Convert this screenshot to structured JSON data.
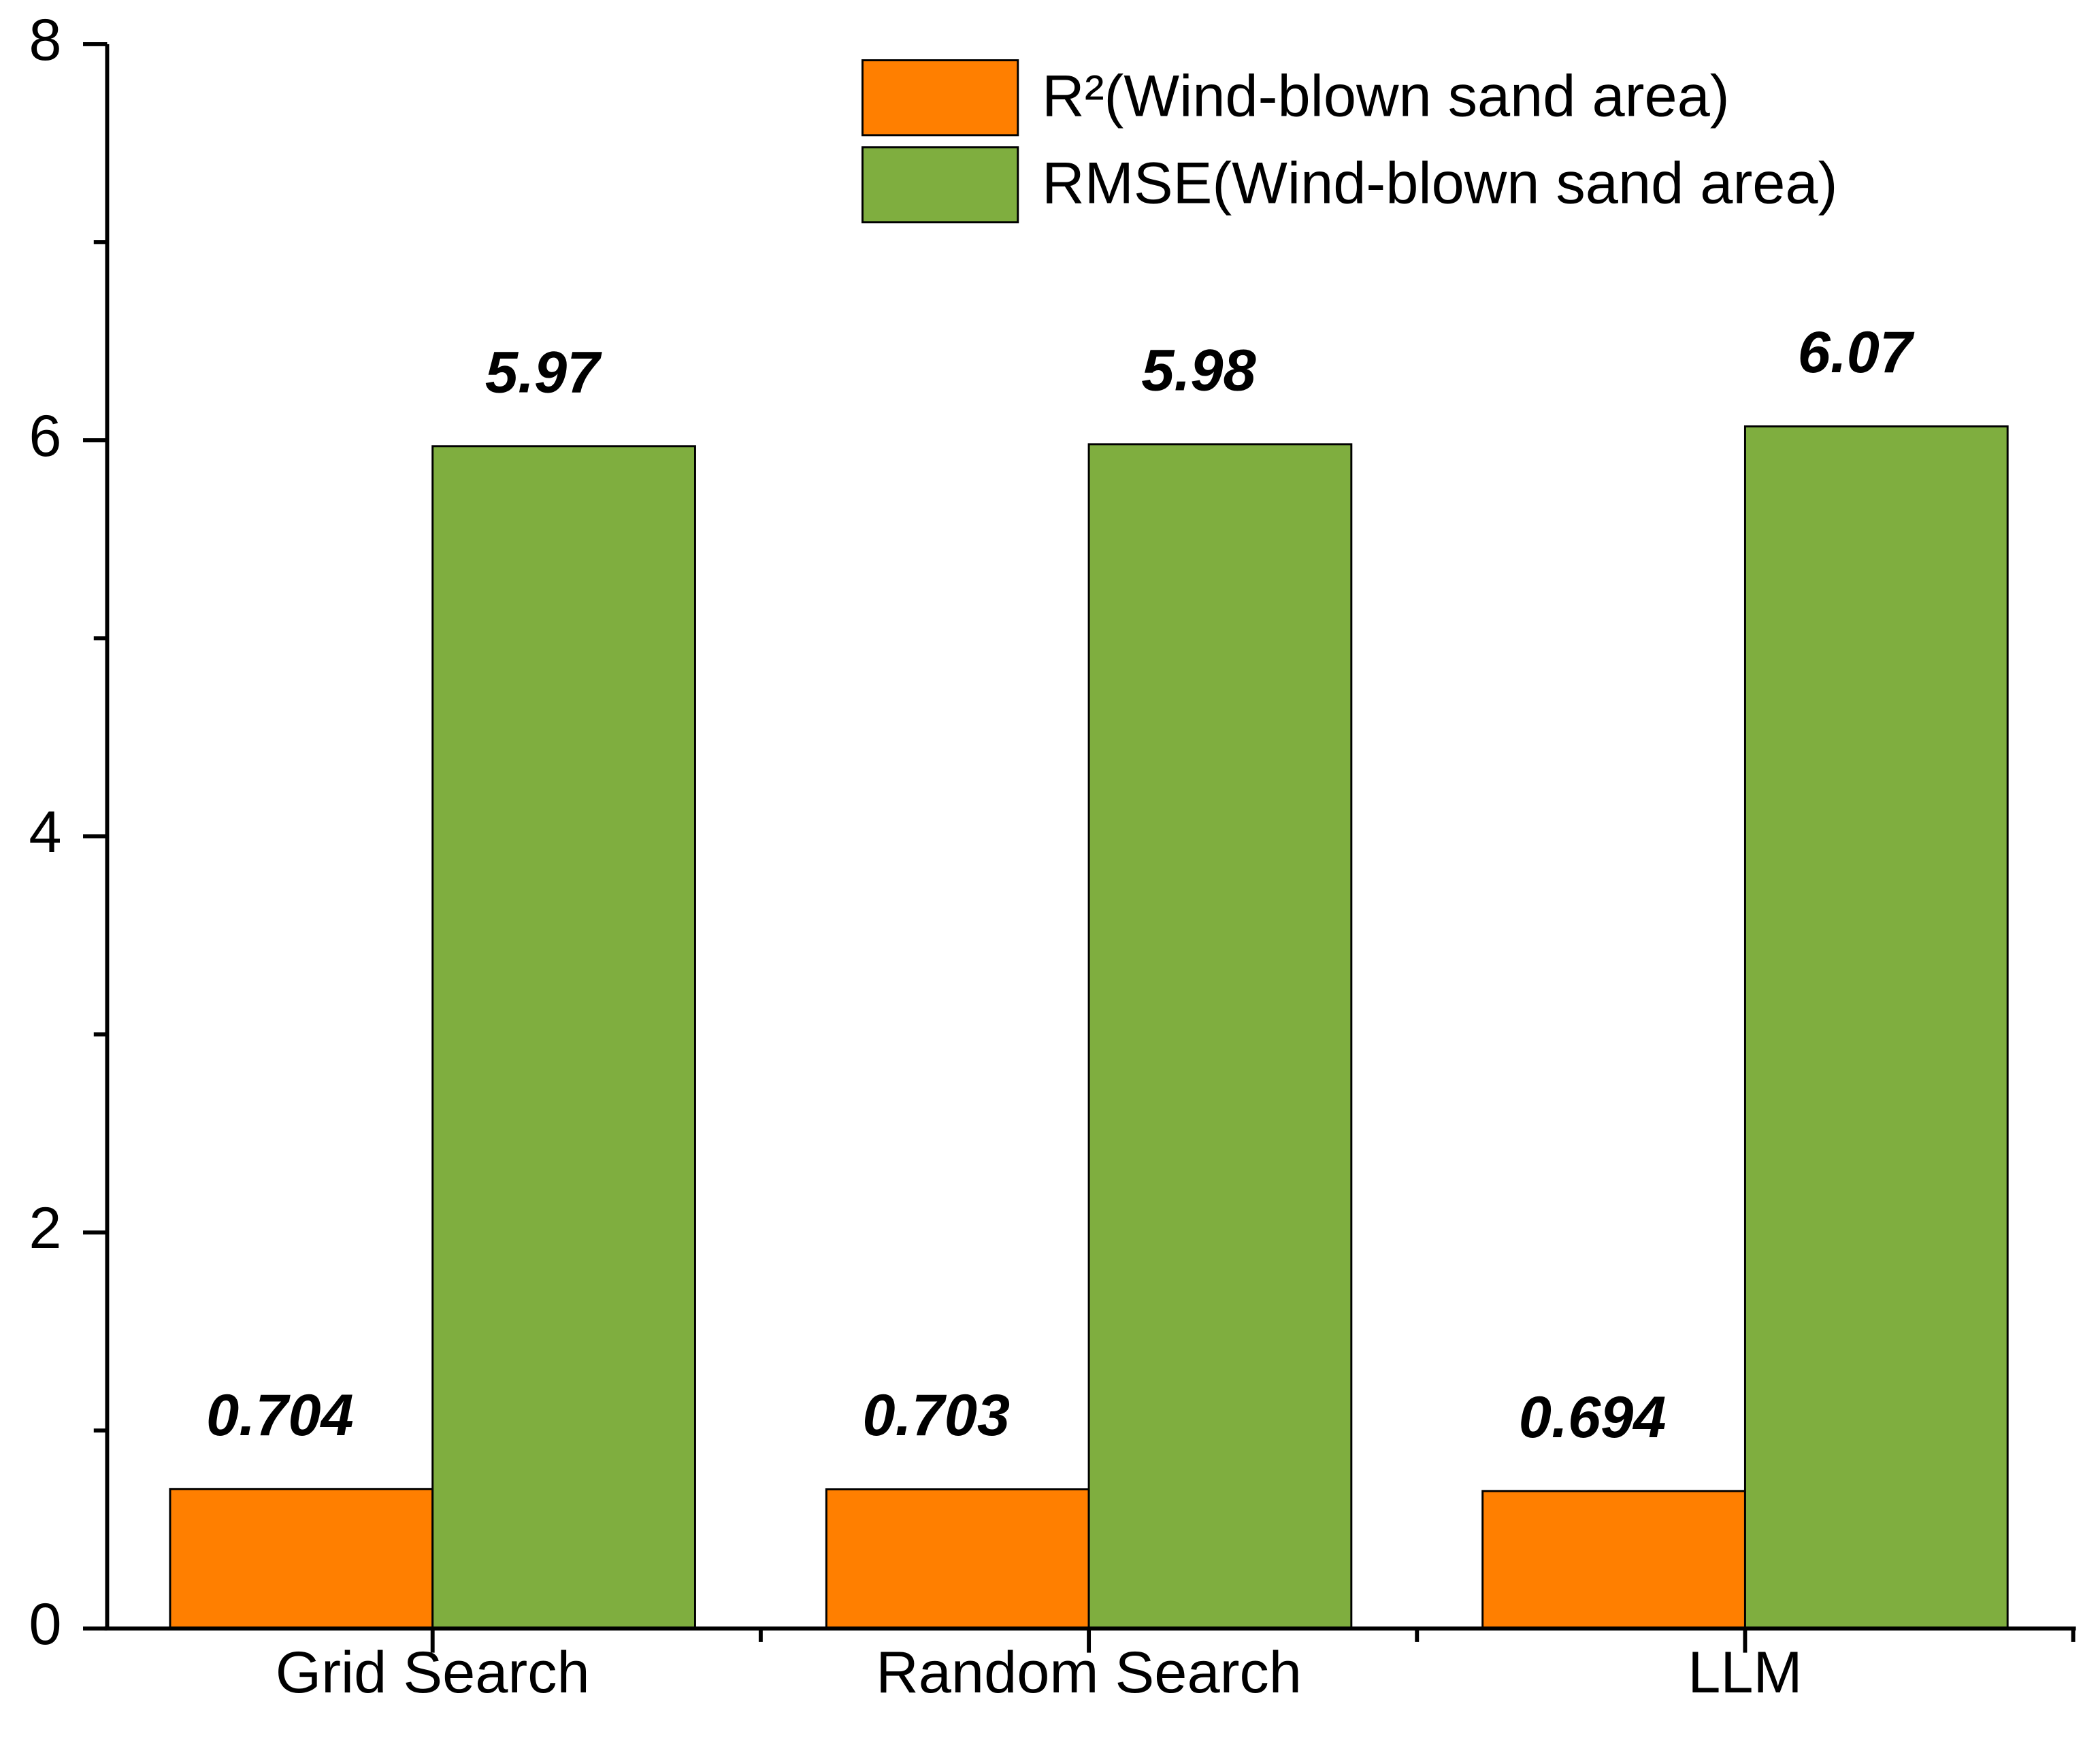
{
  "chart_data": {
    "type": "bar",
    "categories": [
      "Grid Search",
      "Random Search",
      "LLM"
    ],
    "series": [
      {
        "name": "R²(Wind-blown sand area)",
        "color": "#ff7f00",
        "values": [
          0.704,
          0.703,
          0.694
        ]
      },
      {
        "name": "RMSE(Wind-blown sand area)",
        "color": "#7fae3f",
        "values": [
          5.97,
          5.98,
          6.07
        ]
      }
    ],
    "ylim": [
      0,
      8
    ],
    "yticks": [
      0,
      2,
      4,
      6,
      8
    ],
    "minor_yticks": [
      1,
      3,
      5,
      7
    ],
    "grid": false,
    "legend": "top-right"
  }
}
